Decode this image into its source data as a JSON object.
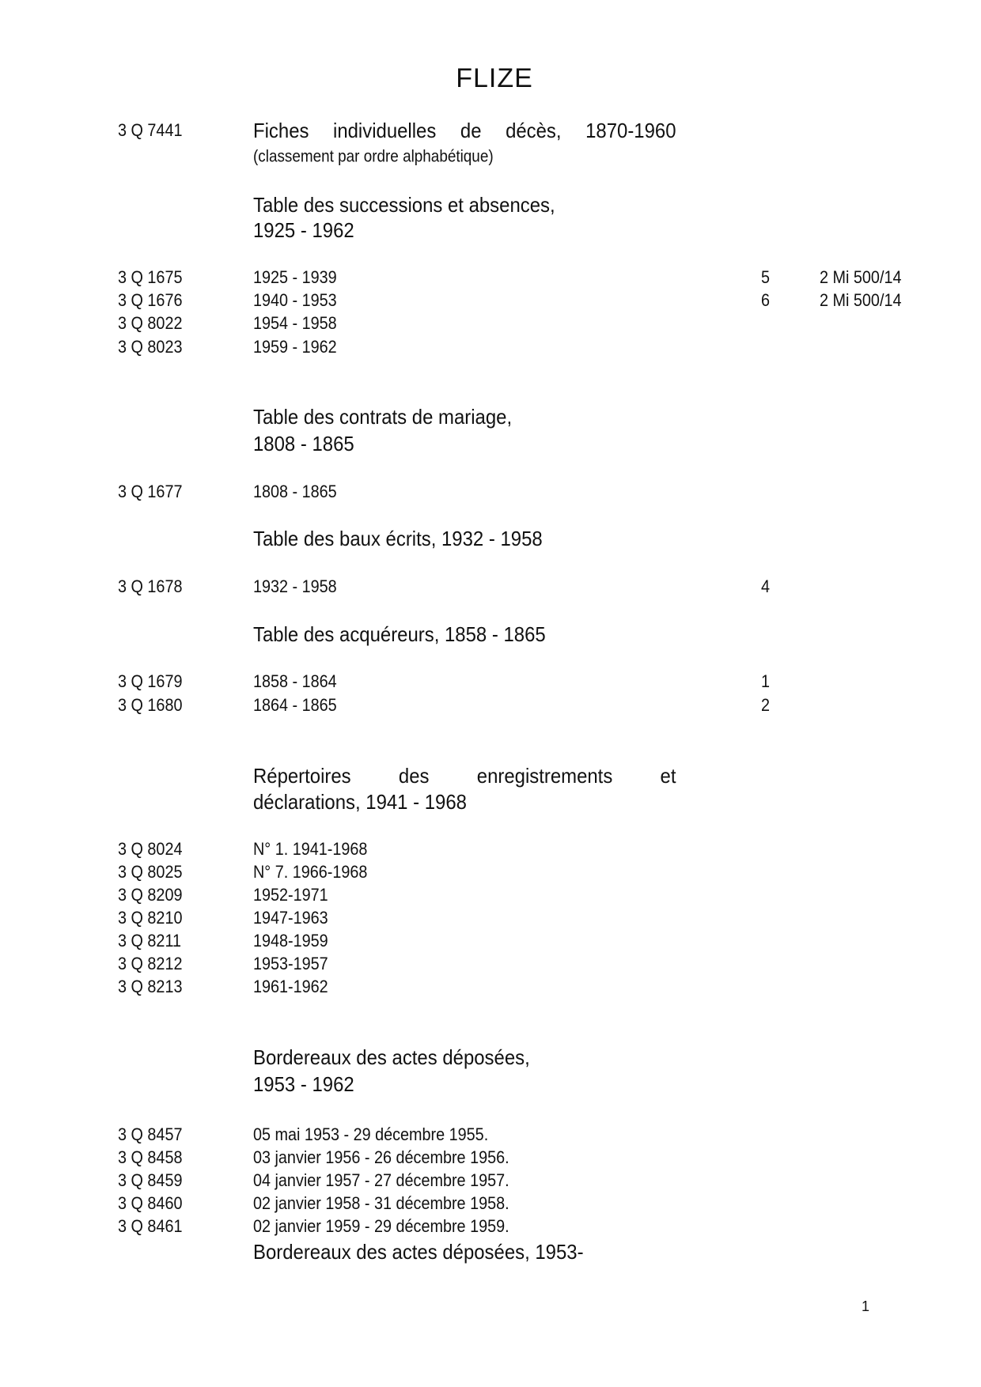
{
  "title": "FLIZE",
  "page_number": "1",
  "entries": [
    {
      "code": "3 Q 7441",
      "heading": [
        "Fiches individuelles de décès, 1870-1960"
      ],
      "note": "(classement par ordre alphabétique)"
    },
    {
      "heading": [
        "Table des successions et absences,",
        "1925 - 1962"
      ],
      "rows": [
        {
          "code": "3 Q 1675",
          "text": "1925 - 1939",
          "num": "5",
          "ref": "2 Mi 500/14"
        },
        {
          "code": "3 Q 1676",
          "text": "1940 - 1953",
          "num": "6",
          "ref": "2 Mi 500/14"
        },
        {
          "code": "3 Q 8022",
          "text": "1954 - 1958"
        },
        {
          "code": "3 Q 8023",
          "text": "1959 - 1962"
        }
      ]
    },
    {
      "heading": [
        "Table des contrats de mariage,",
        "1808 - 1865"
      ],
      "rows": [
        {
          "code": "3 Q 1677",
          "text": "1808 - 1865"
        }
      ]
    },
    {
      "heading": [
        "Table des baux écrits, 1932 - 1958"
      ],
      "rows": [
        {
          "code": "3 Q 1678",
          "text": "1932 - 1958",
          "num": "4"
        }
      ]
    },
    {
      "heading": [
        "Table des acquéreurs, 1858 - 1865"
      ],
      "rows": [
        {
          "code": "3 Q 1679",
          "text": "1858 - 1864",
          "num": "1"
        },
        {
          "code": "3 Q 1680",
          "text": "1864 - 1865",
          "num": "2"
        }
      ]
    },
    {
      "heading": [
        "Répertoires des enregistrements et",
        "déclarations, 1941 - 1968"
      ],
      "rows": [
        {
          "code": "3 Q 8024",
          "text": "N° 1. 1941-1968"
        },
        {
          "code": "3 Q 8025",
          "text": "N° 7. 1966-1968"
        },
        {
          "code": "3 Q 8209",
          "text": "1952-1971"
        },
        {
          "code": "3 Q 8210",
          "text": "1947-1963"
        },
        {
          "code": "3 Q 8211",
          "text": "1948-1959"
        },
        {
          "code": "3 Q 8212",
          "text": "1953-1957"
        },
        {
          "code": "3 Q 8213",
          "text": "1961-1962"
        }
      ]
    },
    {
      "heading": [
        "Bordereaux des actes déposées,",
        "1953 - 1962"
      ],
      "rows": [
        {
          "code": "3 Q 8457",
          "text": "05 mai 1953 - 29 décembre 1955."
        },
        {
          "code": "3 Q 8458",
          "text": "03 janvier 1956 - 26 décembre 1956."
        },
        {
          "code": "3 Q 8459",
          "text": "04 janvier 1957 - 27 décembre 1957."
        },
        {
          "code": "3 Q 8460",
          "text": "02 janvier 1958 - 31 décembre 1958."
        },
        {
          "code": "3 Q 8461",
          "text": "02 janvier 1959 - 29 décembre 1959."
        }
      ]
    },
    {
      "heading": [
        "Bordereaux des actes déposées, 1953-"
      ]
    }
  ]
}
